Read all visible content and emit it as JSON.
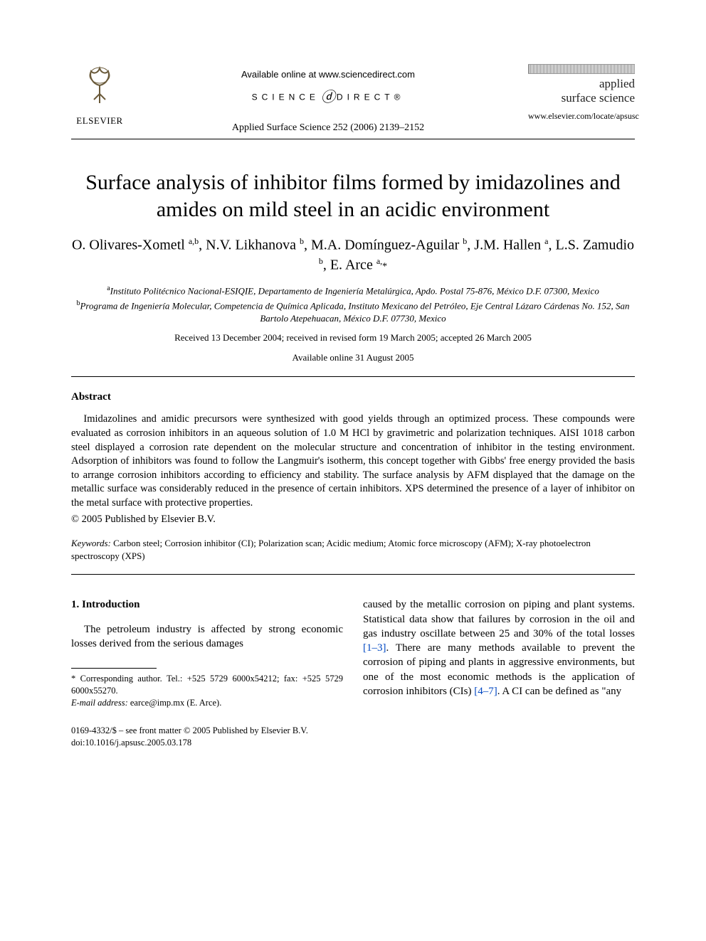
{
  "header": {
    "publisher_name": "ELSEVIER",
    "available_line": "Available online at www.sciencedirect.com",
    "sd_left": "SCIENCE",
    "sd_right": "DIRECT®",
    "journal_reference": "Applied Surface Science 252 (2006) 2139–2152",
    "journal_name_line1": "applied",
    "journal_name_line2": "surface science",
    "journal_url": "www.elsevier.com/locate/apsusc"
  },
  "article": {
    "title": "Surface analysis of inhibitor films formed by imidazolines and amides on mild steel in an acidic environment",
    "authors_html": "O. Olivares-Xometl <sup>a,b</sup>, N.V. Likhanova <sup>b</sup>, M.A. Domínguez-Aguilar <sup>b</sup>, J.M. Hallen <sup>a</sup>, L.S. Zamudio <sup>b</sup>, E. Arce <sup>a,</sup><span class='star'>*</span>",
    "affil_a": "Instituto Politécnico Nacional-ESIQIE, Departamento de Ingeniería Metalúrgica, Apdo. Postal 75-876, México D.F. 07300, Mexico",
    "affil_b": "Programa de Ingeniería Molecular, Competencia de Química Aplicada, Instituto Mexicano del Petróleo, Eje Central Lázaro Cárdenas No. 152, San Bartolo Atepehuacan, México D.F. 07730, Mexico",
    "received_line": "Received 13 December 2004; received in revised form 19 March 2005; accepted 26 March 2005",
    "available_online": "Available online 31 August 2005"
  },
  "abstract": {
    "heading": "Abstract",
    "body": "Imidazolines and amidic precursors were synthesized with good yields through an optimized process. These compounds were evaluated as corrosion inhibitors in an aqueous solution of 1.0 M HCl by gravimetric and polarization techniques. AISI 1018 carbon steel displayed a corrosion rate dependent on the molecular structure and concentration of inhibitor in the testing environment. Adsorption of inhibitors was found to follow the Langmuir's isotherm, this concept together with Gibbs' free energy provided the basis to arrange corrosion inhibitors according to efficiency and stability. The surface analysis by AFM displayed that the damage on the metallic surface was considerably reduced in the presence of certain inhibitors. XPS determined the presence of a layer of inhibitor on the metal surface with protective properties.",
    "copyright": "© 2005 Published by Elsevier B.V.",
    "keywords_label": "Keywords:",
    "keywords_text": " Carbon steel; Corrosion inhibitor (CI); Polarization scan; Acidic medium; Atomic force microscopy (AFM); X-ray photoelectron spectroscopy (XPS)"
  },
  "section1": {
    "heading": "1. Introduction",
    "left_para": "The petroleum industry is affected by strong economic losses derived from the serious damages",
    "right_para_pre": "caused by the metallic corrosion on piping and plant systems. Statistical data show that failures by corrosion in the oil and gas industry oscillate between 25 and 30% of the total losses ",
    "right_ref1": "[1–3]",
    "right_para_mid": ". There are many methods available to prevent the corrosion of piping and plants in aggressive environments, but one of the most economic methods is the application of corrosion inhibitors (CIs) ",
    "right_ref2": "[4–7]",
    "right_para_post": ". A CI can be defined as \"any"
  },
  "footnote": {
    "corresponding": "* Corresponding author. Tel.: +525 5729 6000x54212; fax: +525 5729 6000x55270.",
    "email_label": "E-mail address:",
    "email_value": " earce@imp.mx (E. Arce)."
  },
  "doi": {
    "front_matter": "0169-4332/$ – see front matter © 2005 Published by Elsevier B.V.",
    "doi_line": "doi:10.1016/j.apsusc.2005.03.178"
  },
  "colors": {
    "text": "#000000",
    "link": "#0047c2",
    "background": "#ffffff"
  }
}
